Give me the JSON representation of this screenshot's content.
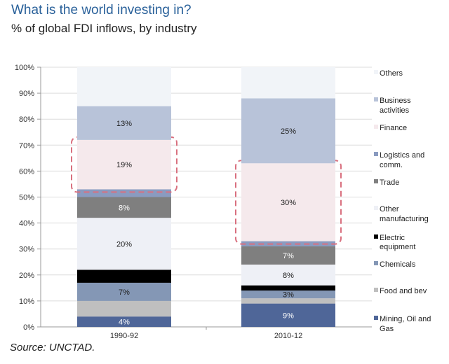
{
  "title": "What is the world investing in?",
  "subtitle": "% of global FDI inflows, by industry",
  "source": "Source: UNCTAD.",
  "chart_data": {
    "type": "bar",
    "stacked": true,
    "categories": [
      "1990-92",
      "2010-12"
    ],
    "ylim": [
      0,
      100
    ],
    "yticks": [
      "0%",
      "10%",
      "20%",
      "30%",
      "40%",
      "50%",
      "60%",
      "70%",
      "80%",
      "90%",
      "100%"
    ],
    "grid": true,
    "legend_position": "right",
    "series": [
      {
        "name": "Mining, Oil and Gas",
        "values": [
          4,
          9
        ],
        "labels": [
          "4%",
          "9%"
        ],
        "color": "#4f6698",
        "label_color": "#ffffff"
      },
      {
        "name": "Food and bev",
        "values": [
          6,
          2
        ],
        "labels": [
          "",
          ""
        ],
        "color": "#bfbfbf",
        "label_color": "#222222"
      },
      {
        "name": "Chemicals",
        "values": [
          7,
          3
        ],
        "labels": [
          "7%",
          "3%"
        ],
        "color": "#8497b5",
        "label_color": "#222222"
      },
      {
        "name": "Electric equipment",
        "values": [
          5,
          2
        ],
        "labels": [
          "",
          ""
        ],
        "color": "#000000",
        "label_color": "#ffffff"
      },
      {
        "name": "Other manufacturing",
        "values": [
          20,
          8
        ],
        "labels": [
          "20%",
          "8%"
        ],
        "color": "#eef0f6",
        "label_color": "#222222"
      },
      {
        "name": "Trade",
        "values": [
          8,
          7
        ],
        "labels": [
          "8%",
          "7%"
        ],
        "color": "#7f7f7f",
        "label_color": "#ffffff"
      },
      {
        "name": "Logistics and comm.",
        "values": [
          3,
          2
        ],
        "labels": [
          "",
          ""
        ],
        "color": "#8a9bc0",
        "label_color": "#222222"
      },
      {
        "name": "Finance",
        "values": [
          19,
          30
        ],
        "labels": [
          "19%",
          "30%"
        ],
        "color": "#f5e9ec",
        "label_color": "#222222",
        "highlighted": true
      },
      {
        "name": "Business activities",
        "values": [
          13,
          25
        ],
        "labels": [
          "13%",
          "25%"
        ],
        "color": "#b8c3d9",
        "label_color": "#222222"
      },
      {
        "name": "Others",
        "values": [
          15,
          12
        ],
        "labels": [
          "",
          ""
        ],
        "color": "#f1f4f8",
        "label_color": "#222222"
      }
    ],
    "highlight_color": "#d9707f"
  }
}
